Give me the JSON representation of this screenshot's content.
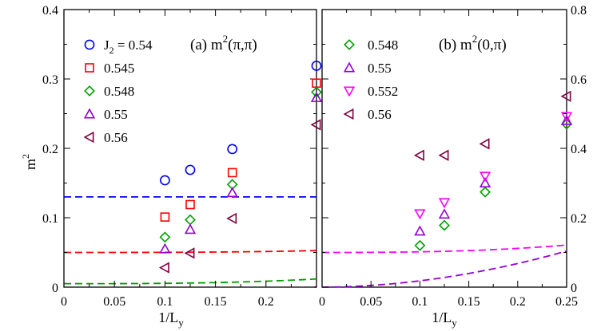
{
  "chart_data": [
    {
      "type": "scatter",
      "panel": "left",
      "title": "(a) m²(π,π)",
      "title_main": "(a) m",
      "title_sup": "2",
      "title_arg": "(π,π)",
      "xlabel": "1/L",
      "xlabel_sub": "y",
      "ylabel": "m",
      "ylabel_sup": "2",
      "xlim": [
        0,
        0.25
      ],
      "ylim": [
        0,
        0.4
      ],
      "xticks": [
        0,
        0.05,
        0.1,
        0.15,
        0.2
      ],
      "xtick_labels": [
        "0",
        "0.05",
        "0.1",
        "0.15",
        "0.2"
      ],
      "yticks": [
        0,
        0.1,
        0.2,
        0.3,
        0.4
      ],
      "ytick_labels": [
        "0",
        "0.1",
        "0.2",
        "0.3",
        "0.4"
      ],
      "legend_position": "top-left",
      "legend_prefix": "J",
      "legend_prefix_sub": "2",
      "series": [
        {
          "name": "0.54",
          "legend": "= 0.54",
          "color": "#0000ff",
          "marker": "circle",
          "x": [
            0.1,
            0.125,
            0.1667,
            0.25
          ],
          "y": [
            0.154,
            0.169,
            0.199,
            0.319
          ],
          "fit": {
            "a": 0.13,
            "b": 0.0,
            "c": 3.0
          }
        },
        {
          "name": "0.545",
          "legend": "0.545",
          "color": "#ff0000",
          "marker": "square",
          "x": [
            0.1,
            0.125,
            0.1667,
            0.25
          ],
          "y": [
            0.101,
            0.119,
            0.165,
            0.294
          ],
          "fit": {
            "a": 0.05,
            "b": 0.2,
            "c": 3.1
          }
        },
        {
          "name": "0.548",
          "legend": "0.548",
          "color": "#00a000",
          "marker": "diamond",
          "x": [
            0.1,
            0.125,
            0.1667,
            0.25
          ],
          "y": [
            0.072,
            0.097,
            0.148,
            0.281
          ],
          "fit": {
            "a": 0.005,
            "b": 0.38,
            "c": 2.9
          }
        },
        {
          "name": "0.55",
          "legend": "0.55",
          "color": "#9400d3",
          "marker": "triangle-up",
          "x": [
            0.1,
            0.125,
            0.1667,
            0.25
          ],
          "y": [
            0.055,
            0.083,
            0.136,
            0.273
          ],
          "fit": {
            "a": -0.008,
            "b": 0.4,
            "c": 2.8
          }
        },
        {
          "name": "0.56",
          "legend": "0.56",
          "color": "#800040",
          "marker": "triangle-left",
          "x": [
            0.1,
            0.125,
            0.1667,
            0.25
          ],
          "y": [
            0.028,
            0.049,
            0.099,
            0.234
          ],
          "fit": {
            "a": -0.03,
            "b": 0.4,
            "c": 2.6
          }
        }
      ]
    },
    {
      "type": "scatter",
      "panel": "right",
      "title": "(b) m²(0,π)",
      "title_main": "(b) m",
      "title_sup": "2",
      "title_arg": "(0,π)",
      "xlabel": "1/L",
      "xlabel_sub": "y",
      "xlim": [
        0,
        0.25
      ],
      "ylim": [
        0,
        0.8
      ],
      "xticks": [
        0,
        0.05,
        0.1,
        0.15,
        0.2,
        0.25
      ],
      "xtick_labels": [
        "0",
        "0.05",
        "0.1",
        "0.15",
        "0.2",
        "0.25"
      ],
      "yticks": [
        0,
        0.2,
        0.4,
        0.6,
        0.8
      ],
      "ytick_labels": [
        "0",
        "0.2",
        "0.4",
        "0.6",
        "0.8"
      ],
      "legend_position": "top-left",
      "series": [
        {
          "name": "0.548",
          "legend": "0.548",
          "color": "#00a000",
          "marker": "diamond",
          "x": [
            0.1,
            0.125,
            0.1667,
            0.25
          ],
          "y": [
            0.12,
            0.178,
            0.274,
            0.47
          ]
        },
        {
          "name": "0.55",
          "legend": "0.55",
          "color": "#9400d3",
          "marker": "triangle-up",
          "x": [
            0.1,
            0.125,
            0.1667,
            0.25
          ],
          "y": [
            0.161,
            0.21,
            0.3,
            0.48
          ],
          "fit": {
            "a": 0.0,
            "b": 1.45,
            "c": 1.9
          }
        },
        {
          "name": "0.552",
          "legend": "0.552",
          "color": "#ff00ff",
          "marker": "triangle-down",
          "x": [
            0.1,
            0.125,
            0.1667,
            0.25
          ],
          "y": [
            0.212,
            0.244,
            0.32,
            0.492
          ],
          "fit": {
            "a": 0.1,
            "b": 0.9,
            "c": 2.7
          }
        },
        {
          "name": "0.56",
          "legend": "0.56",
          "color": "#800040",
          "marker": "triangle-left",
          "x": [
            0.1,
            0.125,
            0.1667,
            0.25
          ],
          "y": [
            0.38,
            0.38,
            0.413,
            0.55
          ]
        }
      ]
    }
  ]
}
